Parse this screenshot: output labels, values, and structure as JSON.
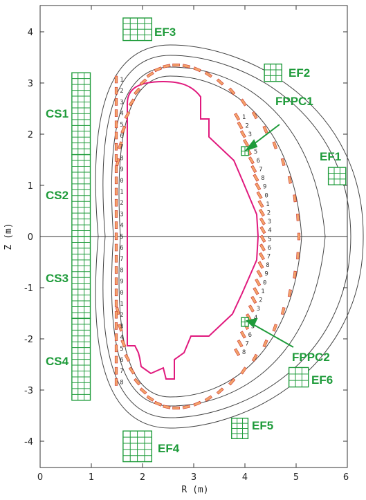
{
  "axes": {
    "x_label": "R (m)",
    "y_label": "Z (m)",
    "x_range": [
      0,
      6
    ],
    "y_range": [
      -4.5,
      4.5
    ],
    "x_ticks": [
      "0",
      "1",
      "2",
      "3",
      "4",
      "5",
      "6"
    ],
    "y_ticks": [
      "-4",
      "-3",
      "-2",
      "-1",
      "0",
      "1",
      "2",
      "3",
      "4"
    ]
  },
  "colors": {
    "coil": "#1e9b3a",
    "limiter": "#e0197d",
    "probe_fill": "#f4a46a",
    "probe_stroke": "#c9302c",
    "vessel": "#444444",
    "arrow": "#1e9b3a"
  },
  "coils": [
    {
      "name": "CS1",
      "R": 0.8,
      "Z": 2.4,
      "W": 0.36,
      "H": 1.6,
      "nx": 3,
      "ny": 14
    },
    {
      "name": "CS2",
      "R": 0.8,
      "Z": 0.8,
      "W": 0.36,
      "H": 1.6,
      "nx": 3,
      "ny": 14
    },
    {
      "name": "CS3",
      "R": 0.8,
      "Z": -0.8,
      "W": 0.36,
      "H": 1.6,
      "nx": 3,
      "ny": 14
    },
    {
      "name": "CS4",
      "R": 0.8,
      "Z": -2.4,
      "W": 0.36,
      "H": 1.6,
      "nx": 3,
      "ny": 14
    },
    {
      "name": "EF1",
      "R": 5.8,
      "Z": 1.18,
      "W": 0.34,
      "H": 0.34,
      "nx": 3,
      "ny": 3
    },
    {
      "name": "EF2",
      "R": 4.55,
      "Z": 3.2,
      "W": 0.34,
      "H": 0.34,
      "nx": 3,
      "ny": 3
    },
    {
      "name": "EF3",
      "R": 1.9,
      "Z": 4.05,
      "W": 0.56,
      "H": 0.44,
      "nx": 4,
      "ny": 4
    },
    {
      "name": "EF4",
      "R": 1.9,
      "Z": -4.1,
      "W": 0.56,
      "H": 0.6,
      "nx": 4,
      "ny": 5
    },
    {
      "name": "EF5",
      "R": 3.9,
      "Z": -3.75,
      "W": 0.32,
      "H": 0.4,
      "nx": 3,
      "ny": 4
    },
    {
      "name": "EF6",
      "R": 5.05,
      "Z": -2.75,
      "W": 0.38,
      "H": 0.38,
      "nx": 3,
      "ny": 3
    },
    {
      "name": "FPPC1",
      "R": 4.0,
      "Z": 1.67,
      "W": 0.14,
      "H": 0.17,
      "nx": 2,
      "ny": 2
    },
    {
      "name": "FPPC2",
      "R": 4.0,
      "Z": -1.67,
      "W": 0.14,
      "H": 0.17,
      "nx": 2,
      "ny": 2
    }
  ],
  "labels": {
    "CS1": "CS1",
    "CS2": "CS2",
    "CS3": "CS3",
    "CS4": "CS4",
    "EF1": "EF1",
    "EF2": "EF2",
    "EF3": "EF3",
    "EF4": "EF4",
    "EF5": "EF5",
    "EF6": "EF6",
    "FPPC1": "FPPC1",
    "FPPC2": "FPPC2"
  },
  "probe_numbers_inner": [
    "1",
    "2",
    "3",
    "4",
    "5",
    "6",
    "7",
    "8",
    "9",
    "0",
    "1",
    "2",
    "3",
    "4",
    "5",
    "6",
    "7",
    "8",
    "9",
    "0",
    "1",
    "2",
    "3",
    "4",
    "5",
    "6",
    "7",
    "8"
  ],
  "probe_numbers_outer": [
    "1",
    "2",
    "3",
    "4",
    "5",
    "6",
    "7",
    "8",
    "9",
    "0",
    "1",
    "2",
    "3",
    "4",
    "5",
    "6",
    "7",
    "8",
    "9",
    "0",
    "1",
    "2",
    "3",
    "4",
    "5",
    "6",
    "7",
    "8"
  ]
}
